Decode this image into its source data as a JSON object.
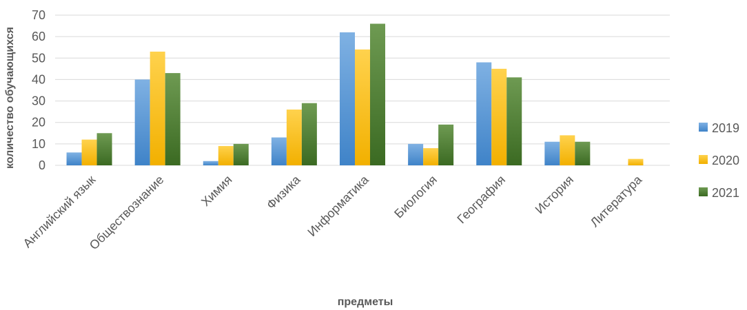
{
  "chart_data": {
    "type": "bar",
    "title": "",
    "xlabel": "предметы",
    "ylabel": "количество обучающихся",
    "ylim": [
      0,
      70
    ],
    "yticks": [
      0,
      10,
      20,
      30,
      40,
      50,
      60,
      70
    ],
    "grid": true,
    "legend_position": "right",
    "categories": [
      "Английский язык",
      "Обществознание",
      "Химия",
      "Физика",
      "Информатика",
      "Биология",
      "География",
      "История",
      "Литература"
    ],
    "series": [
      {
        "name": "2019",
        "color": "#5b9bd5",
        "values": [
          6,
          40,
          2,
          13,
          62,
          10,
          48,
          11,
          0
        ]
      },
      {
        "name": "2020",
        "color": "#ffc000",
        "values": [
          12,
          53,
          9,
          26,
          54,
          8,
          45,
          14,
          3
        ]
      },
      {
        "name": "2021",
        "color": "#548235",
        "values": [
          15,
          43,
          10,
          29,
          66,
          19,
          41,
          11,
          0
        ]
      }
    ]
  }
}
